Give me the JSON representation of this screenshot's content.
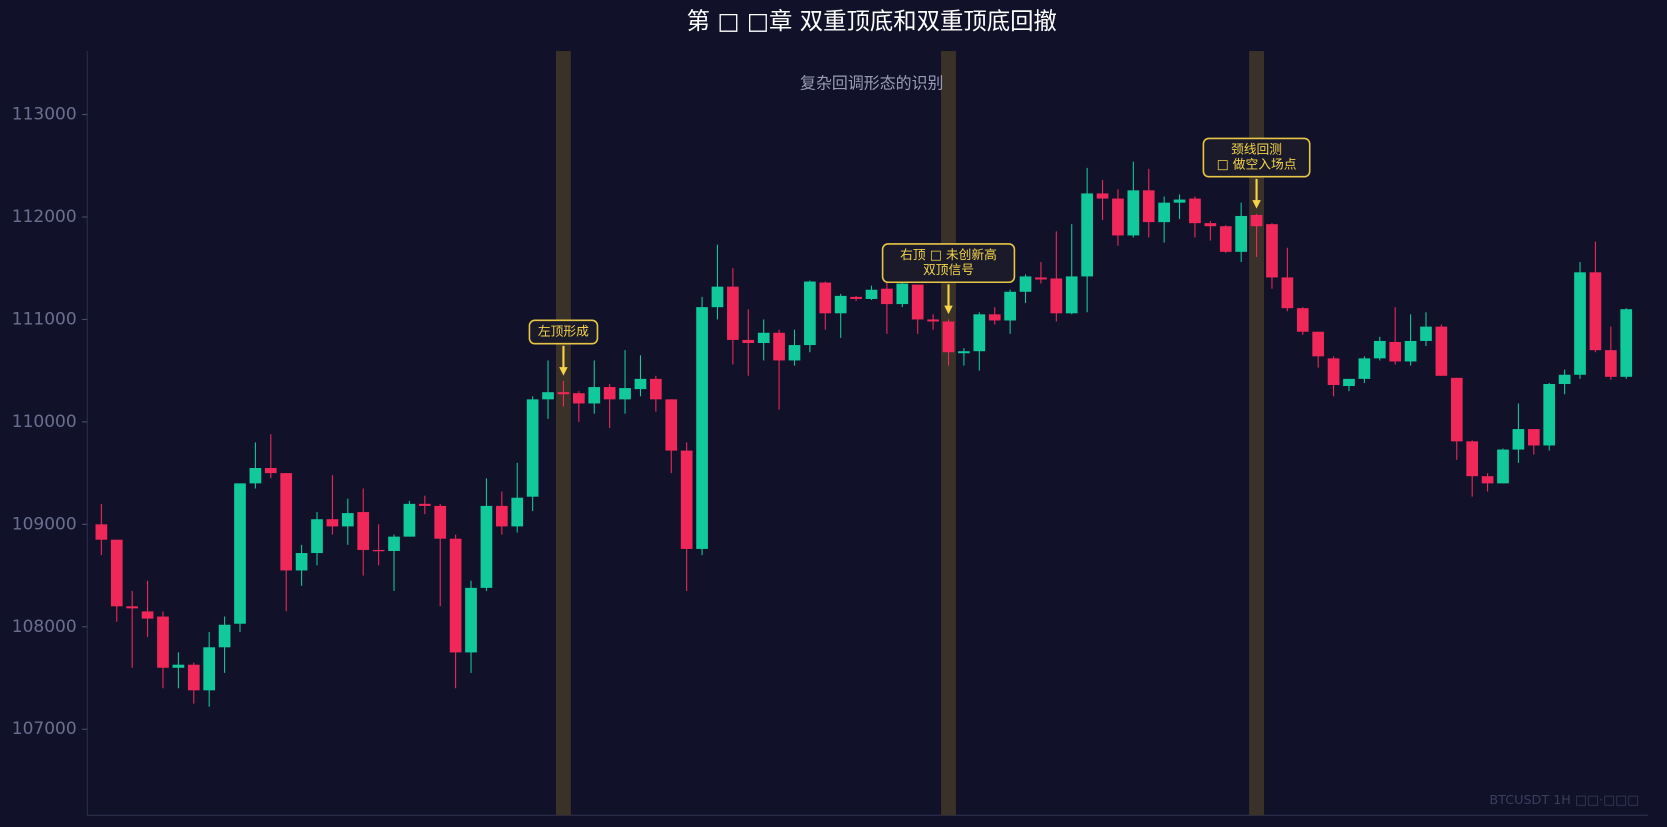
{
  "chart_data": {
    "type": "candlestick",
    "title": "第 □ □章 双重顶底和双重顶底回撤",
    "subtitle": "复杂回调形态的识别",
    "watermark": "BTCUSDT 1H  □□·□□□",
    "ylim": [
      106160,
      113620
    ],
    "yticks": [
      107000,
      108000,
      109000,
      110000,
      111000,
      112000,
      113000
    ],
    "up_color": "#12c99b",
    "down_color": "#f0285a",
    "highlight_color": "#3a3228",
    "highlights": [
      30,
      55,
      75
    ],
    "annotations": [
      {
        "index": 30,
        "text": [
          "左顶形成"
        ]
      },
      {
        "index": 55,
        "text": [
          "右顶 □ 未创新高",
          "双顶信号"
        ]
      },
      {
        "index": 75,
        "text": [
          "颈线回测",
          "□ 做空入场点"
        ]
      }
    ],
    "series": {
      "open": [
        109000,
        108850,
        108200,
        108150,
        108100,
        107600,
        107630,
        107380,
        107800,
        108030,
        109400,
        109550,
        109500,
        108550,
        108720,
        109050,
        108980,
        109120,
        108750,
        108740,
        108880,
        109200,
        109180,
        108860,
        107750,
        108380,
        109180,
        108980,
        109270,
        110220,
        110290,
        110280,
        110180,
        110340,
        110220,
        110320,
        110420,
        110220,
        109720,
        108760,
        111120,
        111320,
        110800,
        110770,
        110870,
        110600,
        110750,
        111360,
        111060,
        111220,
        111200,
        111300,
        111150,
        111340,
        111000,
        110980,
        110670,
        110690,
        111050,
        110990,
        111270,
        111410,
        111400,
        111060,
        111420,
        112230,
        112180,
        111820,
        112260,
        111950,
        112140,
        112180,
        111940,
        111910,
        111660,
        112020,
        111930,
        111410,
        111110,
        110880,
        110620,
        110350,
        110420,
        110620,
        110780,
        110590,
        110790,
        110930,
        110430,
        109810,
        109470,
        109400,
        109730,
        109930,
        109770,
        110370,
        110460,
        111460,
        110700,
        110440
      ],
      "high": [
        109200,
        108850,
        108350,
        108450,
        108150,
        107750,
        107650,
        107950,
        108100,
        109400,
        109800,
        109880,
        109500,
        108800,
        109120,
        109480,
        109250,
        109350,
        109000,
        108900,
        109230,
        109280,
        109200,
        108900,
        108450,
        109450,
        109320,
        109600,
        110250,
        110600,
        110400,
        110300,
        110600,
        110370,
        110700,
        110650,
        110450,
        110220,
        109800,
        111220,
        111730,
        111500,
        111100,
        111000,
        110900,
        110900,
        111380,
        111370,
        111250,
        111230,
        111330,
        111380,
        111370,
        111340,
        111050,
        111000,
        110720,
        111070,
        111120,
        111290,
        111440,
        111560,
        111860,
        111930,
        112480,
        112360,
        112270,
        112540,
        112470,
        112200,
        112220,
        112200,
        111960,
        111920,
        112140,
        112030,
        111940,
        111700,
        111120,
        110880,
        110640,
        110420,
        110640,
        110830,
        111120,
        111050,
        111070,
        110950,
        110430,
        109820,
        109500,
        109740,
        110180,
        109930,
        110380,
        110510,
        111560,
        111760,
        110930,
        111110
      ],
      "low": [
        108700,
        108050,
        107600,
        107900,
        107400,
        107400,
        107250,
        107220,
        107550,
        107950,
        109350,
        109450,
        108150,
        108400,
        108600,
        108900,
        108800,
        108500,
        108600,
        108350,
        108880,
        109100,
        108200,
        107400,
        107550,
        108350,
        108900,
        108920,
        109130,
        110030,
        110150,
        110000,
        110080,
        109940,
        110080,
        110250,
        110100,
        109500,
        108350,
        108700,
        111000,
        110560,
        110450,
        110600,
        110120,
        110550,
        110680,
        110900,
        110820,
        111180,
        111190,
        110860,
        111120,
        110860,
        110900,
        110550,
        110550,
        110500,
        110950,
        110860,
        111160,
        111350,
        110980,
        111050,
        111070,
        111970,
        111720,
        111800,
        111800,
        111750,
        111980,
        111800,
        111770,
        111650,
        111560,
        111610,
        111300,
        111080,
        110850,
        110530,
        110250,
        110300,
        110380,
        110600,
        110560,
        110550,
        110740,
        110450,
        109630,
        109270,
        109320,
        109400,
        109600,
        109680,
        109720,
        110270,
        110420,
        110680,
        110410,
        110420
      ],
      "close": [
        108850,
        108200,
        108180,
        108080,
        107600,
        107630,
        107380,
        107800,
        108020,
        109400,
        109550,
        109500,
        108550,
        108720,
        109050,
        108980,
        109110,
        108750,
        108740,
        108880,
        109200,
        109180,
        108860,
        107750,
        108380,
        109180,
        108980,
        109260,
        110220,
        110290,
        110270,
        110180,
        110340,
        110220,
        110330,
        110420,
        110220,
        109720,
        108760,
        111120,
        111320,
        110800,
        110770,
        110870,
        110600,
        110750,
        111370,
        111060,
        111230,
        111200,
        111290,
        111150,
        111350,
        111000,
        110980,
        110680,
        110690,
        111050,
        110990,
        111270,
        111420,
        111390,
        111060,
        111420,
        112230,
        112180,
        111820,
        112260,
        111950,
        112140,
        112170,
        111940,
        111910,
        111660,
        112010,
        111910,
        111410,
        111110,
        110880,
        110640,
        110360,
        110420,
        110620,
        110790,
        110590,
        110790,
        110930,
        110450,
        109810,
        109470,
        109400,
        109730,
        109930,
        109770,
        110370,
        110460,
        111460,
        110700,
        110440,
        111100
      ]
    }
  }
}
